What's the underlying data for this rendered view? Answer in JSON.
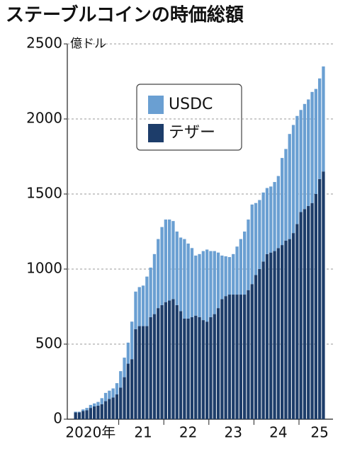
{
  "chart_data": {
    "type": "stacked_bar",
    "title": "ステーブルコインの時価総額",
    "y_unit": "億ドル",
    "categories": [
      null,
      null,
      null,
      null,
      "2020年",
      null,
      null,
      null,
      null,
      null,
      null,
      null,
      null,
      null,
      null,
      null,
      null,
      null,
      "21",
      null,
      null,
      null,
      null,
      null,
      null,
      null,
      null,
      null,
      null,
      null,
      "22",
      null,
      null,
      null,
      null,
      null,
      null,
      null,
      null,
      null,
      null,
      null,
      "23",
      null,
      null,
      null,
      null,
      null,
      null,
      null,
      null,
      null,
      null,
      null,
      "24",
      null,
      null,
      null,
      null,
      null,
      null,
      null,
      null,
      null,
      null,
      "25",
      null
    ],
    "series": [
      {
        "name": "USDC",
        "color": "#6a9fd2",
        "values": [
          5,
          5,
          10,
          15,
          20,
          20,
          25,
          40,
          55,
          55,
          60,
          75,
          110,
          130,
          140,
          250,
          250,
          260,
          270,
          330,
          330,
          400,
          460,
          520,
          550,
          540,
          520,
          490,
          490,
          530,
          500,
          460,
          400,
          420,
          460,
          480,
          440,
          420,
          370,
          290,
          265,
          250,
          270,
          320,
          370,
          420,
          470,
          530,
          480,
          460,
          460,
          440,
          440,
          460,
          480,
          580,
          610,
          700,
          720,
          720,
          680,
          700,
          710,
          740,
          700,
          670,
          700
        ]
      },
      {
        "name": "テザー",
        "color": "#1d3d6a",
        "values": [
          45,
          45,
          55,
          60,
          75,
          85,
          90,
          100,
          120,
          135,
          145,
          165,
          210,
          280,
          370,
          400,
          600,
          620,
          620,
          620,
          680,
          700,
          740,
          760,
          780,
          790,
          800,
          760,
          720,
          670,
          670,
          680,
          690,
          680,
          660,
          650,
          680,
          700,
          740,
          800,
          820,
          830,
          830,
          830,
          830,
          830,
          860,
          900,
          960,
          1000,
          1050,
          1100,
          1110,
          1120,
          1140,
          1160,
          1190,
          1200,
          1240,
          1300,
          1380,
          1400,
          1420,
          1440,
          1500,
          1600,
          1650
        ]
      }
    ],
    "ylim": [
      0,
      2500
    ],
    "yticks": [
      0,
      500,
      1000,
      1500,
      2000,
      2500
    ],
    "grid": true
  }
}
